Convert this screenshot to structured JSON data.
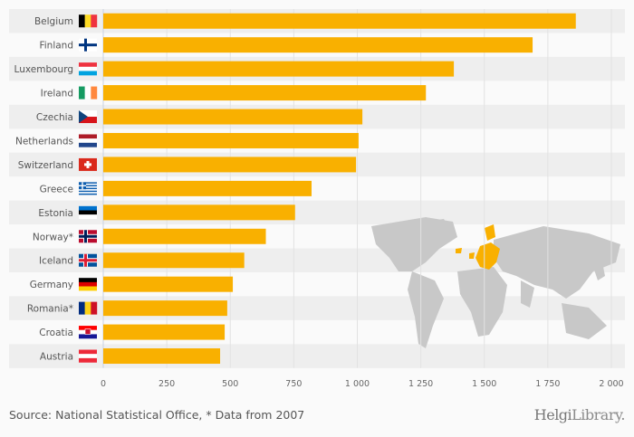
{
  "chart_data": {
    "type": "bar",
    "orientation": "horizontal",
    "title": "",
    "xlabel": "",
    "ylabel": "",
    "xlim": [
      0,
      2000
    ],
    "xticks": [
      0,
      250,
      500,
      750,
      1000,
      1250,
      1500,
      1750,
      2000
    ],
    "xtick_labels": [
      "0",
      "250",
      "500",
      "750",
      "1 000",
      "1 250",
      "1 500",
      "1 750",
      "2 000"
    ],
    "grid": true,
    "bar_color": "#f9b000",
    "categories": [
      "Belgium",
      "Finland",
      "Luxembourg",
      "Ireland",
      "Czechia",
      "Netherlands",
      "Switzerland",
      "Greece",
      "Estonia",
      "Norway*",
      "Iceland",
      "Germany",
      "Romania*",
      "Croatia",
      "Austria"
    ],
    "values": [
      1860,
      1690,
      1380,
      1270,
      1020,
      1005,
      995,
      820,
      755,
      640,
      555,
      510,
      488,
      478,
      460
    ]
  },
  "footer": {
    "source": "Source: National Statistical Office, * Data from 2007",
    "logo_bold": "Helgi",
    "logo_light": "Library."
  }
}
